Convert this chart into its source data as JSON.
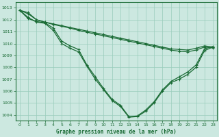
{
  "title": "Graphe pression niveau de la mer (hPa)",
  "background_color": "#cce8e0",
  "grid_color": "#99ccbb",
  "line_color": "#1a6b35",
  "xlim": [
    -0.5,
    23.5
  ],
  "ylim": [
    1003.5,
    1013.5
  ],
  "yticks": [
    1004,
    1005,
    1006,
    1007,
    1008,
    1009,
    1010,
    1011,
    1012,
    1013
  ],
  "xticks": [
    0,
    1,
    2,
    3,
    4,
    5,
    6,
    7,
    8,
    9,
    10,
    11,
    12,
    13,
    14,
    15,
    16,
    17,
    18,
    19,
    20,
    21,
    22,
    23
  ],
  "series": [
    {
      "x": [
        0,
        1,
        2,
        3,
        4,
        5,
        6,
        7,
        8,
        9,
        10,
        11,
        12,
        13,
        14,
        15,
        16,
        17,
        18,
        19,
        20,
        21,
        22,
        23
      ],
      "y": [
        1012.8,
        1012.2,
        1011.8,
        1011.7,
        1011.1,
        1010.0,
        1009.6,
        1009.3,
        1008.1,
        1007.0,
        1006.1,
        1005.2,
        1004.7,
        1003.8,
        1003.85,
        1004.3,
        1005.0,
        1006.0,
        1006.7,
        1007.0,
        1007.4,
        1008.0,
        1009.4,
        1009.7
      ]
    },
    {
      "x": [
        0,
        1,
        2,
        3,
        4,
        5,
        6,
        7,
        8,
        9,
        10,
        11,
        12,
        13,
        14,
        15,
        16,
        17,
        18,
        19,
        20,
        21,
        22,
        23
      ],
      "y": [
        1012.8,
        1012.1,
        1011.85,
        1011.75,
        1011.3,
        1010.2,
        1009.8,
        1009.5,
        1008.2,
        1007.2,
        1006.2,
        1005.3,
        1004.8,
        1003.85,
        1003.9,
        1004.4,
        1005.1,
        1006.1,
        1006.8,
        1007.2,
        1007.6,
        1008.2,
        1009.55,
        1009.75
      ]
    },
    {
      "x": [
        0,
        1,
        2,
        3,
        4,
        5,
        6,
        7,
        8,
        9,
        10,
        11,
        12,
        13,
        14,
        15,
        16,
        17,
        18,
        19,
        20,
        21,
        22,
        23
      ],
      "y": [
        1012.8,
        1012.6,
        1012.0,
        1011.8,
        1011.65,
        1011.5,
        1011.35,
        1011.2,
        1011.05,
        1010.9,
        1010.75,
        1010.6,
        1010.45,
        1010.3,
        1010.15,
        1010.0,
        1009.85,
        1009.7,
        1009.55,
        1009.5,
        1009.45,
        1009.6,
        1009.8,
        1009.7
      ]
    },
    {
      "x": [
        0,
        1,
        2,
        3,
        4,
        5,
        6,
        7,
        8,
        9,
        10,
        11,
        12,
        13,
        14,
        15,
        16,
        17,
        18,
        19,
        20,
        21,
        22,
        23
      ],
      "y": [
        1012.8,
        1012.5,
        1012.0,
        1011.8,
        1011.6,
        1011.45,
        1011.3,
        1011.1,
        1010.95,
        1010.8,
        1010.65,
        1010.5,
        1010.35,
        1010.2,
        1010.05,
        1009.9,
        1009.75,
        1009.6,
        1009.45,
        1009.35,
        1009.3,
        1009.45,
        1009.7,
        1009.65
      ]
    }
  ]
}
